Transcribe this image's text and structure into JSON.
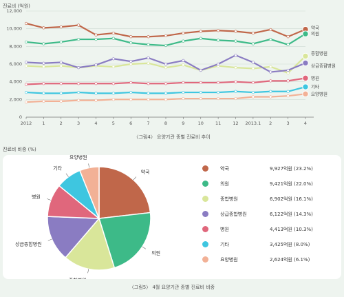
{
  "chart_data": [
    {
      "type": "line",
      "ylabel": "진료비 (억원)",
      "ylim": [
        0,
        12000
      ],
      "yticks": [
        0,
        2000,
        4000,
        6000,
        8000,
        10000,
        12000
      ],
      "ytick_labels": [
        "0",
        "2,000",
        "4,000",
        "6,000",
        "8,000",
        "10,000",
        "12,000"
      ],
      "categories": [
        "2012",
        "1",
        "2",
        "3",
        "4",
        "5",
        "6",
        "7",
        "8",
        "9",
        "10",
        "11",
        "12",
        "2013.1",
        "2",
        "3",
        "4"
      ],
      "series": [
        {
          "name": "약국",
          "color": "#c0674a",
          "values": [
            10600,
            10100,
            10200,
            10400,
            9300,
            9500,
            9100,
            9100,
            9200,
            9500,
            9700,
            9800,
            9700,
            9500,
            9900,
            9100,
            9927
          ]
        },
        {
          "name": "의원",
          "color": "#3dba88",
          "values": [
            8500,
            8300,
            8500,
            8800,
            8800,
            8900,
            8400,
            8200,
            8100,
            8600,
            8900,
            8700,
            8600,
            8300,
            8800,
            8200,
            9421
          ]
        },
        {
          "name": "종합병원",
          "color": "#d9e69a",
          "values": [
            5800,
            5700,
            5800,
            5600,
            5800,
            5700,
            6000,
            6100,
            5600,
            5900,
            5300,
            5800,
            5600,
            5500,
            5700,
            5000,
            6902
          ]
        },
        {
          "name": "상급종합병원",
          "color": "#8a7cc2",
          "values": [
            6200,
            6100,
            6200,
            5600,
            5900,
            6600,
            6300,
            6700,
            6000,
            6400,
            5300,
            6000,
            7000,
            6200,
            5100,
            5300,
            6122
          ]
        },
        {
          "name": "병원",
          "color": "#e0677c",
          "values": [
            3700,
            3800,
            3800,
            3800,
            3800,
            3800,
            3900,
            3800,
            3800,
            3900,
            3900,
            3900,
            4000,
            3900,
            4100,
            4100,
            4413
          ]
        },
        {
          "name": "기타",
          "color": "#3ec6e0",
          "values": [
            2800,
            2700,
            2700,
            2800,
            2700,
            2700,
            2800,
            2700,
            2700,
            2800,
            2800,
            2800,
            2900,
            2800,
            2900,
            2900,
            3425
          ]
        },
        {
          "name": "요양병원",
          "color": "#f2b196",
          "values": [
            1700,
            1800,
            1800,
            1900,
            1900,
            2000,
            2000,
            2000,
            2000,
            2100,
            2100,
            2100,
            2100,
            2300,
            2300,
            2400,
            2624
          ]
        }
      ],
      "caption": "〈그림4〉 요양기관 종별 진료비 추이"
    },
    {
      "type": "pie",
      "title": "진료비 비중 (%)",
      "slices": [
        {
          "name": "약국",
          "value": 23.2,
          "amount": "9,927억원 (23.2%)",
          "color": "#c0674a"
        },
        {
          "name": "의원",
          "value": 22.0,
          "amount": "9,421억원 (22.0%)",
          "color": "#3dba88"
        },
        {
          "name": "종합병원",
          "value": 16.1,
          "amount": "6,902억원 (16.1%)",
          "color": "#d9e69a"
        },
        {
          "name": "상급종합병원",
          "value": 14.3,
          "amount": "6,122억원 (14.3%)",
          "color": "#8a7cc2"
        },
        {
          "name": "병원",
          "value": 10.3,
          "amount": "4,413억원 (10.3%)",
          "color": "#e0677c"
        },
        {
          "name": "기타",
          "value": 8.0,
          "amount": "3,425억원 (8.0%)",
          "color": "#3ec6e0"
        },
        {
          "name": "요양병원",
          "value": 6.1,
          "amount": "2,624억원 (6.1%)",
          "color": "#f2b196"
        }
      ],
      "caption": "〈그림5〉 4월 요양기관 종별 진료비 비중"
    }
  ]
}
